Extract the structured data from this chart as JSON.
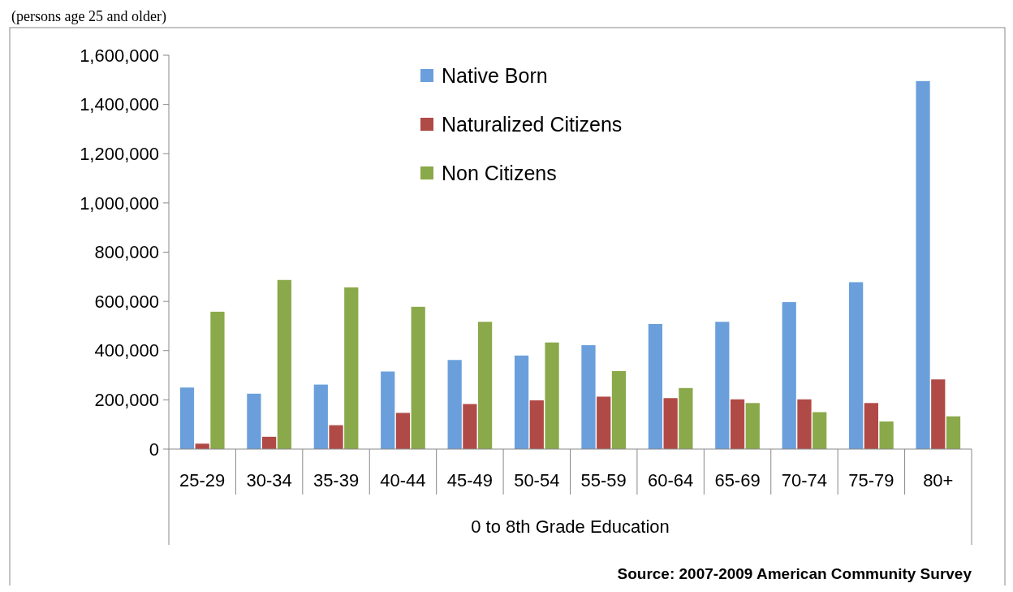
{
  "chart_data": {
    "type": "bar",
    "subtitle": "(persons age 25 and older)",
    "xlabel": "0 to 8th Grade Education",
    "categories": [
      "25-29",
      "30-34",
      "35-39",
      "40-44",
      "45-49",
      "50-54",
      "55-59",
      "60-64",
      "65-69",
      "70-74",
      "75-79",
      "80+"
    ],
    "series": [
      {
        "name": "Native Born",
        "color": "#6a9fdc",
        "values": [
          250000,
          225000,
          262000,
          315000,
          362000,
          380000,
          422000,
          508000,
          517000,
          597000,
          678000,
          1495000
        ]
      },
      {
        "name": "Naturalized Citizens",
        "color": "#b04a46",
        "values": [
          22000,
          50000,
          97000,
          147000,
          183000,
          198000,
          213000,
          207000,
          202000,
          202000,
          187000,
          283000
        ]
      },
      {
        "name": "Non Citizens",
        "color": "#8aa94a",
        "values": [
          558000,
          687000,
          657000,
          578000,
          517000,
          433000,
          317000,
          248000,
          187000,
          150000,
          112000,
          133000
        ]
      }
    ],
    "ylim": [
      0,
      1600000
    ],
    "yticks": [
      {
        "value": 0,
        "label": "0"
      },
      {
        "value": 200000,
        "label": "200,000"
      },
      {
        "value": 400000,
        "label": "400,000"
      },
      {
        "value": 600000,
        "label": "600,000"
      },
      {
        "value": 800000,
        "label": "800,000"
      },
      {
        "value": 1000000,
        "label": "1,000,000"
      },
      {
        "value": 1200000,
        "label": "1,200,000"
      },
      {
        "value": 1400000,
        "label": "1,400,000"
      },
      {
        "value": 1600000,
        "label": "1,600,000"
      }
    ],
    "legend": "top",
    "grid": false,
    "annotations": [
      "Source:  2007-2009 American Community Survey"
    ]
  }
}
